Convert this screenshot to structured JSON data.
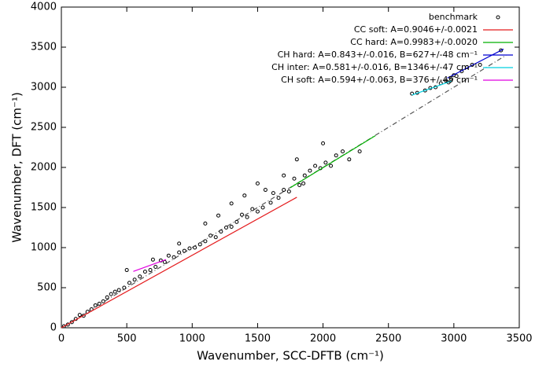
{
  "chart_data": {
    "type": "scatter",
    "xlabel": "Wavenumber, SCC-DFTB (cm⁻¹)",
    "ylabel": "Wavenumber, DFT (cm⁻¹)",
    "xlim": [
      0,
      3500
    ],
    "ylim": [
      0,
      4000
    ],
    "xticks": [
      0,
      500,
      1000,
      1500,
      2000,
      2500,
      3000,
      3500
    ],
    "yticks": [
      0,
      500,
      1000,
      1500,
      2000,
      2500,
      3000,
      3500,
      4000
    ],
    "legend": "upper right",
    "diagonal": {
      "color": "#555555",
      "x": [
        0,
        3400
      ],
      "values": [
        0,
        3400
      ]
    },
    "series": [
      {
        "name": "benchmark",
        "type": "scatter",
        "color": "#000000",
        "x": [
          20,
          50,
          80,
          110,
          140,
          170,
          200,
          230,
          260,
          290,
          320,
          350,
          380,
          410,
          440,
          480,
          500,
          520,
          560,
          600,
          640,
          680,
          720,
          760,
          790,
          820,
          860,
          900,
          940,
          980,
          1020,
          1060,
          1100,
          1140,
          1180,
          1220,
          1260,
          1300,
          1340,
          1380,
          1420,
          1460,
          1500,
          1540,
          1560,
          1600,
          1620,
          1660,
          1700,
          1740,
          1780,
          1820,
          1860,
          1900,
          1940,
          1980,
          2020,
          2060,
          2100,
          2150,
          2200,
          2280,
          1500,
          1300,
          1100,
          1700,
          2000,
          900,
          700,
          1200,
          1400,
          1800,
          1850,
          2680,
          2720,
          2780,
          2820,
          2860,
          2900,
          2940,
          2980,
          3000,
          3020,
          3060,
          3100,
          3140,
          3200,
          3360,
          2960
        ],
        "values": [
          20,
          40,
          70,
          110,
          160,
          150,
          200,
          230,
          280,
          300,
          330,
          380,
          420,
          450,
          470,
          500,
          720,
          560,
          600,
          640,
          700,
          720,
          760,
          840,
          820,
          900,
          880,
          940,
          960,
          990,
          1000,
          1040,
          1080,
          1150,
          1130,
          1200,
          1250,
          1260,
          1320,
          1410,
          1380,
          1480,
          1450,
          1500,
          1720,
          1560,
          1680,
          1620,
          1720,
          1700,
          1860,
          1780,
          1900,
          1960,
          2020,
          1990,
          2060,
          2020,
          2150,
          2200,
          2100,
          2200,
          1800,
          1550,
          1300,
          1900,
          2300,
          1050,
          850,
          1400,
          1650,
          2100,
          1800,
          2920,
          2930,
          2960,
          2990,
          3000,
          3050,
          3080,
          3100,
          3150,
          3140,
          3200,
          3250,
          3280,
          3280,
          3460,
          3060
        ]
      },
      {
        "name": "CC soft: A=0.9046+/-0.0021",
        "type": "line",
        "color": "#e41a1c",
        "x": [
          0,
          1800
        ],
        "values": [
          0,
          1628
        ]
      },
      {
        "name": "CC hard: A=0.9983+/-0.0020",
        "type": "line",
        "color": "#00b000",
        "x": [
          1750,
          2400
        ],
        "values": [
          1747,
          2396
        ]
      },
      {
        "name": "CH hard: A=0.843+/-0.016, B=627+/-48 cm⁻¹",
        "type": "line",
        "color": "#0000d0",
        "x": [
          2950,
          3380
        ],
        "values": [
          3114,
          3476
        ]
      },
      {
        "name": "CH inter: A=0.581+/-0.016, B=1346+/-47 cm⁻¹",
        "type": "line",
        "color": "#00d0e0",
        "x": [
          2680,
          2980
        ],
        "values": [
          2903,
          3077
        ]
      },
      {
        "name": "CH soft: A=0.594+/-0.063, B=376+/-45 cm⁻¹",
        "type": "line",
        "color": "#e000e0",
        "x": [
          550,
          800
        ],
        "values": [
          703,
          851
        ]
      }
    ]
  }
}
